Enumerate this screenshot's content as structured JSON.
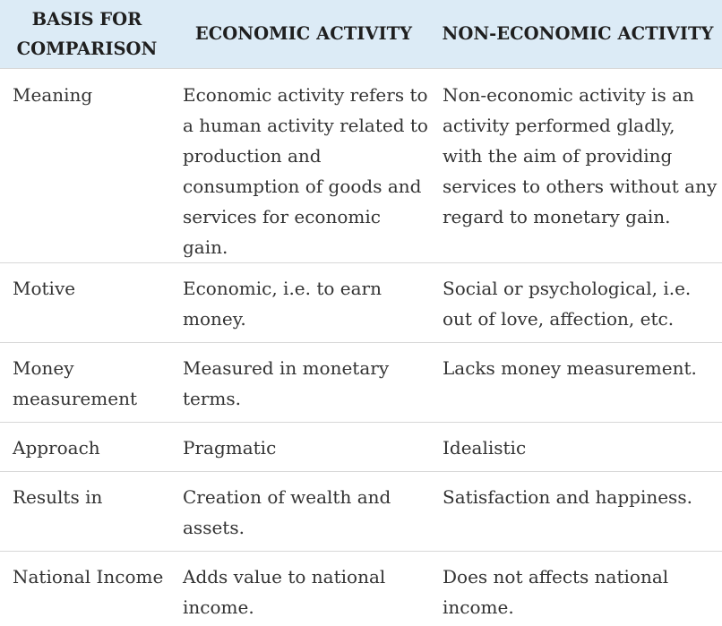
{
  "table": {
    "headers": [
      "BASIS FOR COMPARISON",
      "ECONOMIC ACTIVITY",
      "NON-ECONOMIC ACTIVITY"
    ],
    "rows": [
      {
        "basis": "Meaning",
        "economic": "Economic activity refers to a human activity related to production and consumption of goods and services for economic gain.",
        "non_economic": "Non-economic activity is an activity performed gladly, with the aim of providing services to others without any regard to monetary gain."
      },
      {
        "basis": "Motive",
        "economic": "Economic, i.e. to earn money.",
        "non_economic": "Social or psychological, i.e. out of love, affection, etc."
      },
      {
        "basis": "Money measurement",
        "economic": "Measured in monetary terms.",
        "non_economic": "Lacks money measurement."
      },
      {
        "basis": "Approach",
        "economic": "Pragmatic",
        "non_economic": "Idealistic"
      },
      {
        "basis": "Results in",
        "economic": "Creation of wealth and assets.",
        "non_economic": "Satisfaction and happiness."
      },
      {
        "basis": "National Income",
        "economic": "Adds value to national income.",
        "non_economic": "Does not affects national income."
      }
    ]
  }
}
